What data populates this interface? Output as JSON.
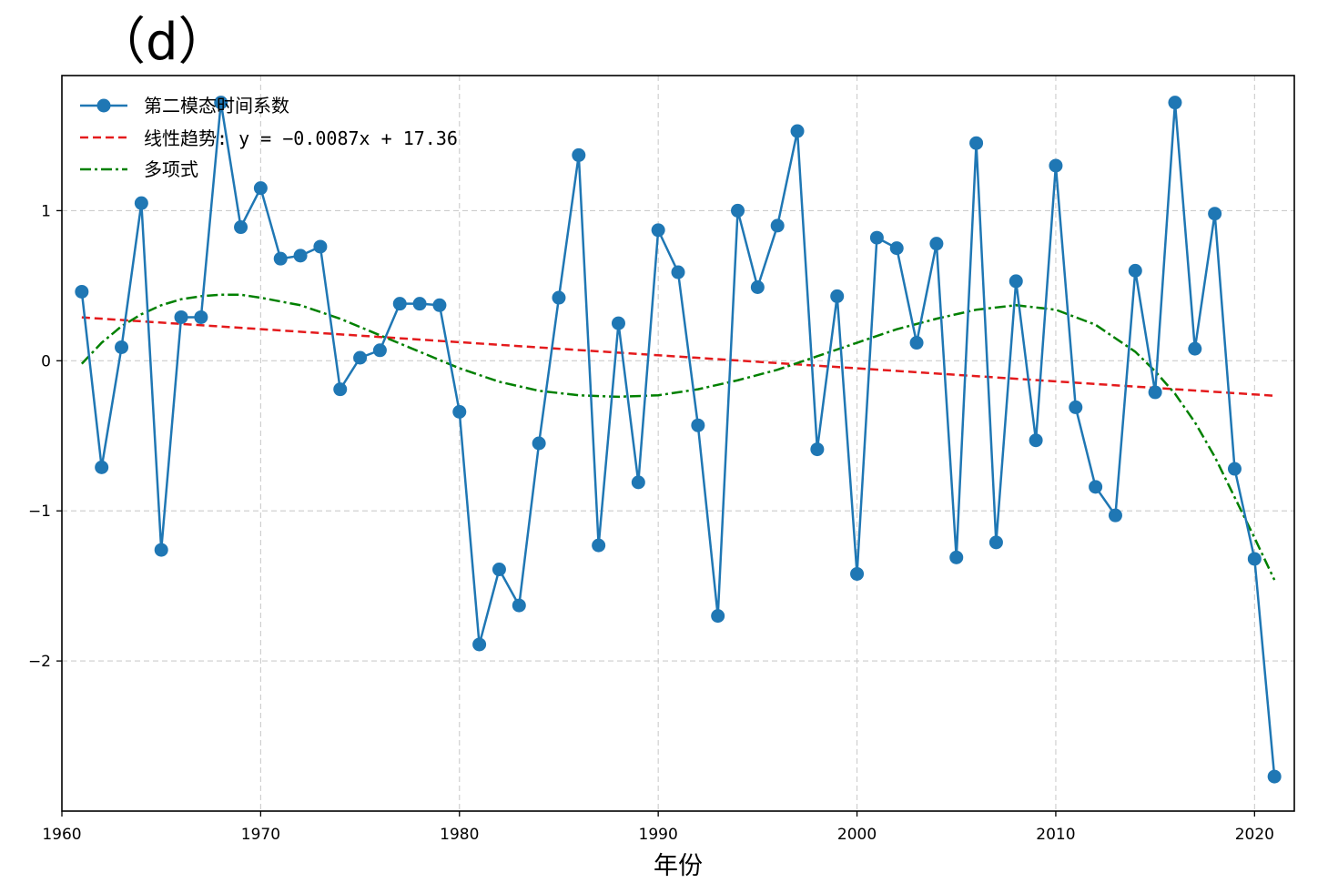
{
  "panel_label": "（d）",
  "chart_data": {
    "type": "line",
    "title": "",
    "xlabel": "年份",
    "ylabel": "",
    "xlim": [
      1960,
      2022
    ],
    "ylim": [
      -3.0,
      1.9
    ],
    "grid": true,
    "x_ticks": [
      1960,
      1970,
      1980,
      1990,
      2000,
      2010,
      2020
    ],
    "y_ticks": [
      -2,
      -1,
      0,
      1
    ],
    "y_tick_labels": [
      "−2",
      "−1",
      "0",
      "1"
    ],
    "legend_position": "top-left",
    "series": [
      {
        "name": "第二模态时间系数",
        "style": "line-marker",
        "color": "#1f77b4",
        "x": [
          1961,
          1962,
          1963,
          1964,
          1965,
          1966,
          1967,
          1968,
          1969,
          1970,
          1971,
          1972,
          1973,
          1974,
          1975,
          1976,
          1977,
          1978,
          1979,
          1980,
          1981,
          1982,
          1983,
          1984,
          1985,
          1986,
          1987,
          1988,
          1989,
          1990,
          1991,
          1992,
          1993,
          1994,
          1995,
          1996,
          1997,
          1998,
          1999,
          2000,
          2001,
          2002,
          2003,
          2004,
          2005,
          2006,
          2007,
          2008,
          2009,
          2010,
          2011,
          2012,
          2013,
          2014,
          2015,
          2016,
          2017,
          2018,
          2019,
          2020,
          2021
        ],
        "values": [
          0.46,
          -0.71,
          0.09,
          1.05,
          -1.26,
          0.29,
          0.29,
          1.72,
          0.89,
          1.15,
          0.68,
          0.7,
          0.76,
          -0.19,
          0.02,
          0.07,
          0.38,
          0.38,
          0.37,
          -0.34,
          -1.89,
          -1.39,
          -1.63,
          -0.55,
          0.42,
          1.37,
          -1.23,
          0.25,
          -0.81,
          0.87,
          0.59,
          -0.43,
          -1.7,
          1.0,
          0.49,
          0.9,
          1.53,
          -0.59,
          0.43,
          -1.42,
          0.82,
          0.75,
          0.12,
          0.78,
          -1.31,
          1.45,
          -1.21,
          0.53,
          -0.53,
          1.3,
          -0.31,
          -0.84,
          -1.03,
          0.6,
          -0.21,
          1.72,
          0.08,
          0.98,
          -0.72,
          -1.32,
          -2.77
        ]
      },
      {
        "name": "线性趋势: y = −0.0087x + 17.36",
        "style": "dashed",
        "color": "#e41a1c",
        "x": [
          1961,
          2021
        ],
        "values": [
          0.289,
          -0.233
        ]
      },
      {
        "name": "多项式",
        "style": "dashdot",
        "color": "#008000",
        "x": [
          1961,
          1962,
          1963,
          1964,
          1965,
          1966,
          1967,
          1968,
          1969,
          1970,
          1972,
          1974,
          1976,
          1978,
          1980,
          1982,
          1984,
          1986,
          1988,
          1990,
          1992,
          1994,
          1996,
          1998,
          2000,
          2002,
          2004,
          2006,
          2008,
          2010,
          2012,
          2014,
          2015,
          2016,
          2017,
          2018,
          2019,
          2020,
          2021
        ],
        "values": [
          -0.02,
          0.12,
          0.23,
          0.31,
          0.37,
          0.41,
          0.43,
          0.44,
          0.44,
          0.42,
          0.37,
          0.28,
          0.17,
          0.06,
          -0.05,
          -0.14,
          -0.2,
          -0.23,
          -0.24,
          -0.23,
          -0.19,
          -0.13,
          -0.06,
          0.03,
          0.12,
          0.21,
          0.28,
          0.34,
          0.37,
          0.34,
          0.24,
          0.06,
          -0.07,
          -0.22,
          -0.41,
          -0.64,
          -0.91,
          -1.18,
          -1.46
        ]
      }
    ]
  }
}
